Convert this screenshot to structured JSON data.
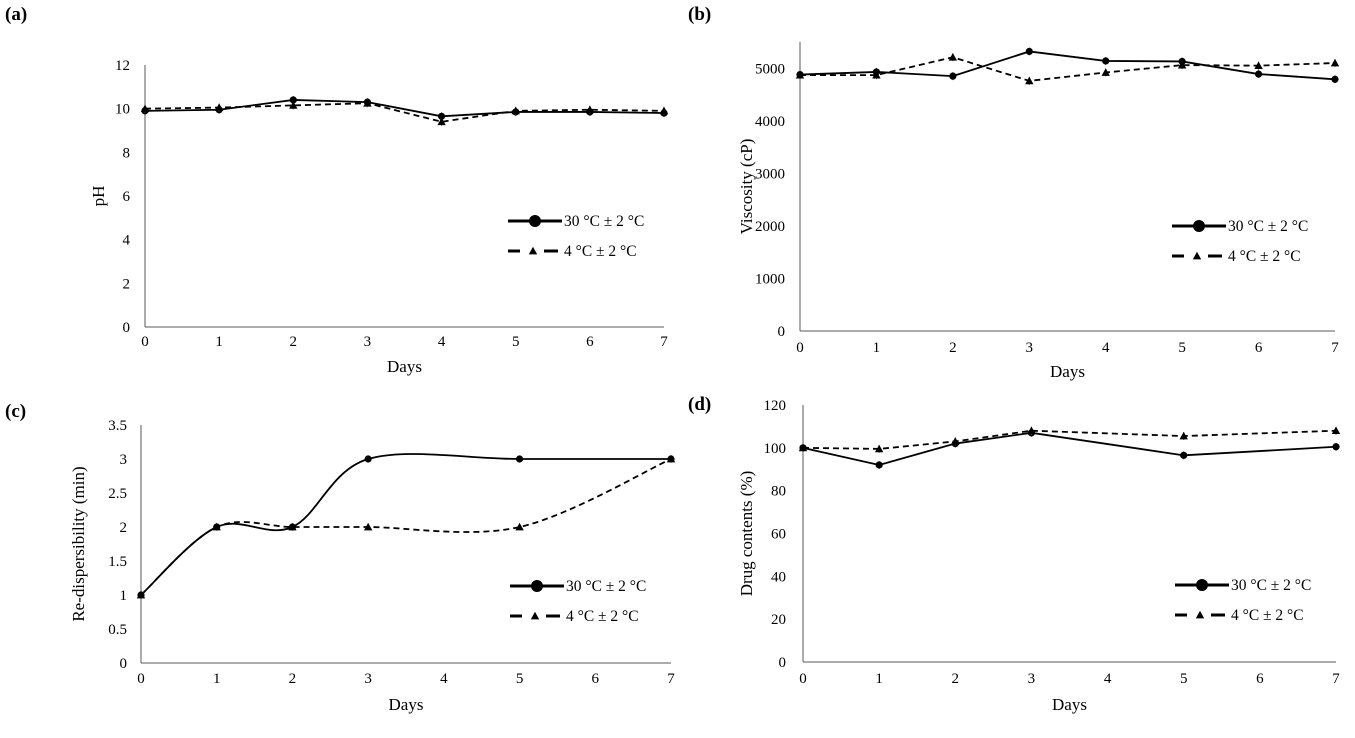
{
  "chart_data": [
    {
      "panel": "(a)",
      "type": "line",
      "title": "",
      "xlabel": "Days",
      "ylabel": "pH",
      "x": [
        0,
        1,
        2,
        3,
        4,
        5,
        6,
        7
      ],
      "xticks": [
        "0",
        "1",
        "2",
        "3",
        "4",
        "5",
        "6",
        "7"
      ],
      "xlim": [
        0,
        7
      ],
      "ylim": [
        0,
        12
      ],
      "yticks": [
        "0",
        "2",
        "4",
        "6",
        "8",
        "10",
        "12"
      ],
      "ytick_values": [
        0,
        2,
        4,
        6,
        8,
        10,
        12
      ],
      "smooth": false,
      "grid": false,
      "legend_position": "right-middle",
      "series": [
        {
          "name": "30 °C ± 2 °C",
          "style": "solid",
          "marker": "circle",
          "values": [
            9.9,
            9.95,
            10.4,
            10.3,
            9.65,
            9.85,
            9.85,
            9.8
          ]
        },
        {
          "name": "4 °C ± 2 °C",
          "style": "dashed",
          "marker": "triangle",
          "values": [
            10.0,
            10.05,
            10.15,
            10.25,
            9.4,
            9.9,
            9.95,
            9.9
          ]
        }
      ]
    },
    {
      "panel": "(b)",
      "type": "line",
      "title": "",
      "xlabel": "Days",
      "ylabel": "Viscosity  (cP)",
      "x": [
        0,
        1,
        2,
        3,
        4,
        5,
        6,
        7
      ],
      "xticks": [
        "0",
        "1",
        "2",
        "3",
        "4",
        "5",
        "6",
        "7"
      ],
      "xlim": [
        0,
        7
      ],
      "ylim": [
        0,
        5500
      ],
      "yticks": [
        "0",
        "1000",
        "2000",
        "3000",
        "4000",
        "5000"
      ],
      "ytick_values": [
        0,
        1000,
        2000,
        3000,
        4000,
        5000
      ],
      "smooth": false,
      "grid": false,
      "legend_position": "right-middle",
      "series": [
        {
          "name": "30 °C ± 2 °C",
          "style": "solid",
          "marker": "circle",
          "values": [
            4880,
            4930,
            4850,
            5320,
            5140,
            5130,
            4890,
            4790
          ]
        },
        {
          "name": "4 °C ± 2 °C",
          "style": "dashed",
          "marker": "triangle",
          "values": [
            4870,
            4870,
            5210,
            4760,
            4920,
            5060,
            5050,
            5100
          ]
        }
      ]
    },
    {
      "panel": "(c)",
      "type": "line",
      "title": "",
      "xlabel": "Days",
      "ylabel": "Re-dispersibility  (min)",
      "x": [
        0,
        1,
        2,
        3,
        5,
        7
      ],
      "xticks": [
        "0",
        "1",
        "2",
        "3",
        "4",
        "5",
        "6",
        "7"
      ],
      "xtick_values": [
        0,
        1,
        2,
        3,
        4,
        5,
        6,
        7
      ],
      "xlim": [
        0,
        7
      ],
      "ylim": [
        0,
        3.5
      ],
      "yticks": [
        "0",
        "0.5",
        "1",
        "1.5",
        "2",
        "2.5",
        "3",
        "3.5"
      ],
      "ytick_values": [
        0,
        0.5,
        1,
        1.5,
        2,
        2.5,
        3,
        3.5
      ],
      "smooth": true,
      "grid": false,
      "legend_position": "right-middle",
      "series": [
        {
          "name": "30 °C ± 2 °C",
          "style": "solid",
          "marker": "circle",
          "values": [
            1,
            2,
            2,
            3,
            3,
            3
          ]
        },
        {
          "name": "4 °C ± 2 °C",
          "style": "dashed",
          "marker": "triangle",
          "values": [
            1,
            2,
            2,
            2,
            2,
            3
          ]
        }
      ]
    },
    {
      "panel": "(d)",
      "type": "line",
      "title": "",
      "xlabel": "Days",
      "ylabel": "Drug contents  (%)",
      "x": [
        0,
        1,
        2,
        3,
        5,
        7
      ],
      "xticks": [
        "0",
        "1",
        "2",
        "3",
        "4",
        "5",
        "6",
        "7"
      ],
      "xtick_values": [
        0,
        1,
        2,
        3,
        4,
        5,
        6,
        7
      ],
      "xlim": [
        0,
        7
      ],
      "ylim": [
        0,
        120
      ],
      "yticks": [
        "0",
        "20",
        "40",
        "60",
        "80",
        "100",
        "120"
      ],
      "ytick_values": [
        0,
        20,
        40,
        60,
        80,
        100,
        120
      ],
      "smooth": false,
      "grid": false,
      "legend_position": "right-middle",
      "series": [
        {
          "name": "30 °C ± 2 °C",
          "style": "solid",
          "marker": "circle",
          "values": [
            100,
            92,
            102,
            107,
            96.5,
            100.5
          ]
        },
        {
          "name": "4 °C ± 2 °C",
          "style": "dashed",
          "marker": "triangle",
          "values": [
            100,
            99.5,
            103,
            108,
            105.5,
            108
          ]
        }
      ]
    }
  ],
  "colors": {
    "line": "#000000",
    "axis": "#595959",
    "background": "#ffffff"
  }
}
